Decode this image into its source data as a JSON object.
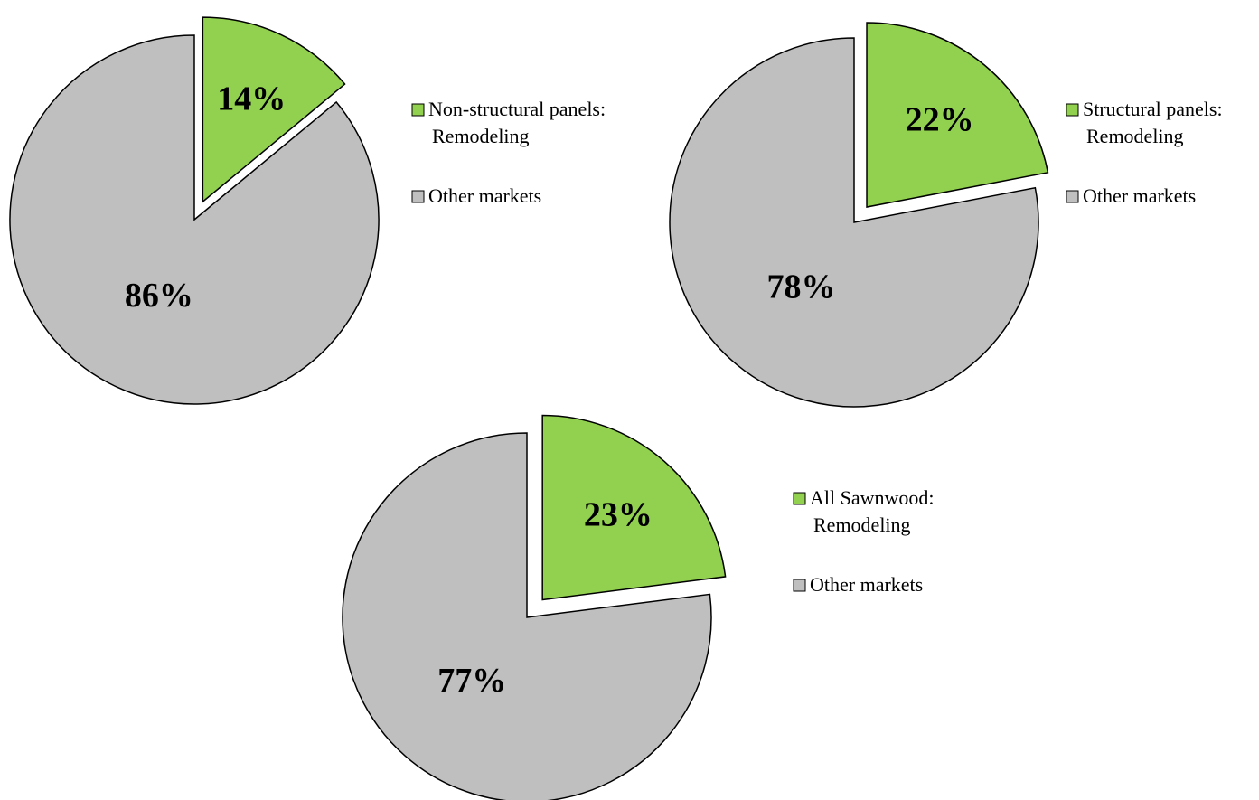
{
  "chart_data": [
    {
      "type": "pie",
      "title": "",
      "slices": [
        {
          "label": "Non-structural panels: Remodeling",
          "legend_lines": [
            "Non-structural panels:",
            "Remodeling"
          ],
          "value": 14,
          "display": "14%",
          "color": "#92D050",
          "exploded": true
        },
        {
          "label": "Other markets",
          "legend_lines": [
            "Other markets"
          ],
          "value": 86,
          "display": "86%",
          "color": "#BFBFBF",
          "exploded": false
        }
      ],
      "legend_position": "right"
    },
    {
      "type": "pie",
      "title": "",
      "slices": [
        {
          "label": "Structural panels: Remodeling",
          "legend_lines": [
            "Structural panels:",
            "Remodeling"
          ],
          "value": 22,
          "display": "22%",
          "color": "#92D050",
          "exploded": true
        },
        {
          "label": "Other markets",
          "legend_lines": [
            "Other markets"
          ],
          "value": 78,
          "display": "78%",
          "color": "#BFBFBF",
          "exploded": false
        }
      ],
      "legend_position": "right"
    },
    {
      "type": "pie",
      "title": "",
      "slices": [
        {
          "label": "All Sawnwood: Remodeling",
          "legend_lines": [
            "All Sawnwood:",
            "Remodeling"
          ],
          "value": 23,
          "display": "23%",
          "color": "#92D050",
          "exploded": true
        },
        {
          "label": "Other markets",
          "legend_lines": [
            "Other markets"
          ],
          "value": 77,
          "display": "77%",
          "color": "#BFBFBF",
          "exploded": false
        }
      ],
      "legend_position": "right"
    }
  ]
}
